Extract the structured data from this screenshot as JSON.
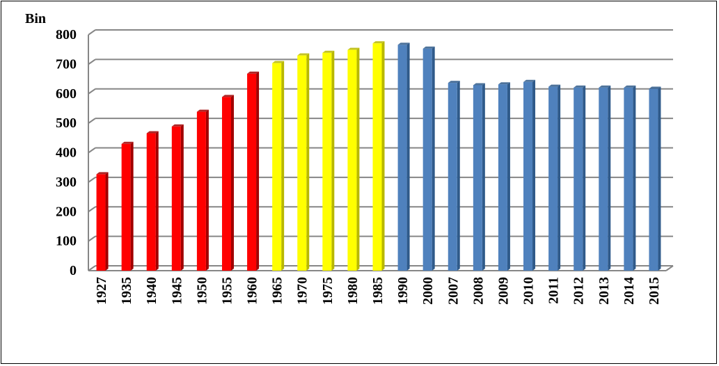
{
  "chart_data": {
    "type": "bar",
    "unit_label": "Bin",
    "categories": [
      "1927",
      "1935",
      "1940",
      "1945",
      "1950",
      "1955",
      "1960",
      "1965",
      "1970",
      "1975",
      "1980",
      "1985",
      "1990",
      "2000",
      "2007",
      "2008",
      "2009",
      "2010",
      "2011",
      "2012",
      "2013",
      "2014",
      "2015"
    ],
    "values": [
      327,
      430,
      466,
      489,
      539,
      589,
      668,
      704,
      730,
      739,
      749,
      771,
      766,
      753,
      637,
      629,
      632,
      640,
      624,
      621,
      621,
      621,
      617
    ],
    "bar_colors": [
      "#ff0000",
      "#ff0000",
      "#ff0000",
      "#ff0000",
      "#ff0000",
      "#ff0000",
      "#ff0000",
      "#ffff00",
      "#ffff00",
      "#ffff00",
      "#ffff00",
      "#ffff00",
      "#4f81bd",
      "#4f81bd",
      "#4f81bd",
      "#4f81bd",
      "#4f81bd",
      "#4f81bd",
      "#4f81bd",
      "#4f81bd",
      "#4f81bd",
      "#4f81bd",
      "#4f81bd"
    ],
    "bar_colors_dark": [
      "#a00000",
      "#a00000",
      "#a00000",
      "#a00000",
      "#a00000",
      "#a00000",
      "#a00000",
      "#b8b800",
      "#b8b800",
      "#b8b800",
      "#b8b800",
      "#b8b800",
      "#2f5a8a",
      "#2f5a8a",
      "#2f5a8a",
      "#2f5a8a",
      "#2f5a8a",
      "#2f5a8a",
      "#2f5a8a",
      "#2f5a8a",
      "#2f5a8a",
      "#2f5a8a",
      "#2f5a8a"
    ],
    "yticks": [
      "0",
      "100",
      "200",
      "300",
      "400",
      "500",
      "600",
      "700",
      "800"
    ],
    "ylim": [
      0,
      800
    ],
    "grid": true
  }
}
